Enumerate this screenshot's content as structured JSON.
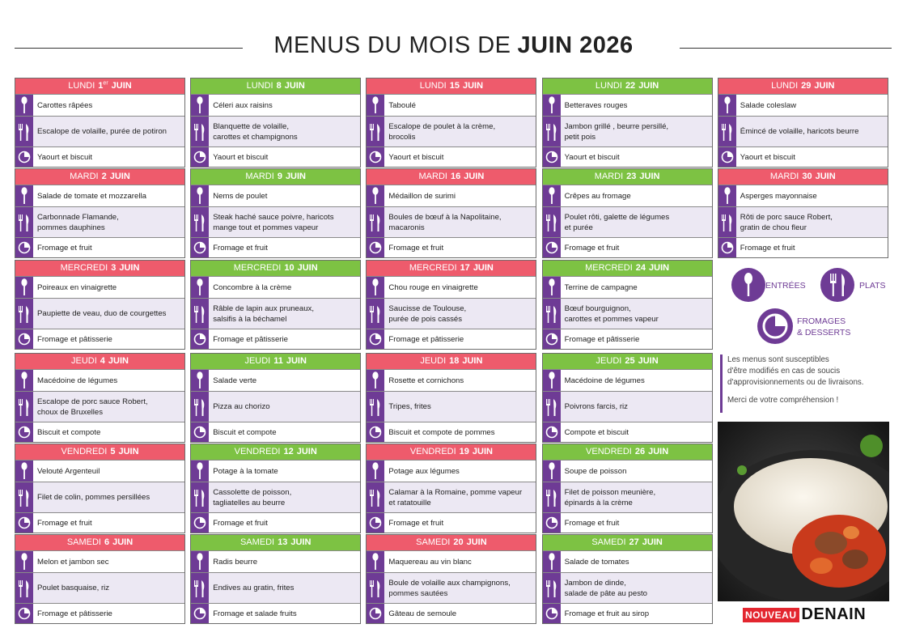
{
  "title": {
    "regular": "MENUS DU MOIS DE",
    "bold": "JUIN 2026"
  },
  "weeks": [
    {
      "header_color": "#ee5b6c",
      "days": [
        {
          "weekday": "LUNDI",
          "day": "1",
          "suffix": "er",
          "month": "JUIN",
          "entree": "Carottes râpées",
          "plat": "Escalope de volaille, purée de potiron",
          "dessert": "Yaourt et biscuit"
        },
        {
          "weekday": "MARDI",
          "day": "2",
          "month": "JUIN",
          "entree": "Salade de tomate et mozzarella",
          "plat": "Carbonnade Flamande,\npommes dauphines",
          "dessert": "Fromage et fruit"
        },
        {
          "weekday": "MERCREDI",
          "day": "3",
          "month": "JUIN",
          "entree": "Poireaux en vinaigrette",
          "plat": "Paupiette de veau, duo de courgettes",
          "dessert": "Fromage et pâtisserie"
        },
        {
          "weekday": "JEUDI",
          "day": "4",
          "month": "JUIN",
          "entree": "Macédoine de légumes",
          "plat": "Escalope de porc sauce Robert,\nchoux de Bruxelles",
          "dessert": "Biscuit et compote"
        },
        {
          "weekday": "VENDREDI",
          "day": "5",
          "month": "JUIN",
          "entree": "Velouté Argenteuil",
          "plat": "Filet de colin, pommes persillées",
          "dessert": "Fromage et fruit"
        },
        {
          "weekday": "SAMEDI",
          "day": "6",
          "month": "JUIN",
          "entree": "Melon et jambon sec",
          "plat": "Poulet basquaise, riz",
          "dessert": "Fromage et pâtisserie"
        }
      ]
    },
    {
      "header_color": "#7dc243",
      "days": [
        {
          "weekday": "LUNDI",
          "day": "8",
          "month": "JUIN",
          "entree": "Céleri aux raisins",
          "plat": "Blanquette de volaille,\ncarottes et champignons",
          "dessert": "Yaourt et biscuit"
        },
        {
          "weekday": "MARDI",
          "day": "9",
          "month": "JUIN",
          "entree": "Nems de poulet",
          "plat": "Steak haché sauce poivre, haricots\nmange tout et pommes vapeur",
          "dessert": "Fromage et fruit"
        },
        {
          "weekday": "MERCREDI",
          "day": "10",
          "month": "JUIN",
          "entree": "Concombre à la crème",
          "plat": "Râble de lapin aux pruneaux,\nsalsifis à la béchamel",
          "dessert": "Fromage et pâtisserie"
        },
        {
          "weekday": "JEUDI",
          "day": "11",
          "month": "JUIN",
          "entree": "Salade verte",
          "plat": "Pizza au chorizo",
          "dessert": "Biscuit et compote"
        },
        {
          "weekday": "VENDREDI",
          "day": "12",
          "month": "JUIN",
          "entree": "Potage à la tomate",
          "plat": "Cassolette de poisson,\ntagliatelles au beurre",
          "dessert": "Fromage et fruit"
        },
        {
          "weekday": "SAMEDI",
          "day": "13",
          "month": "JUIN",
          "entree": "Radis beurre",
          "plat": "Endives au gratin, frites",
          "dessert": "Fromage et salade fruits"
        }
      ]
    },
    {
      "header_color": "#ee5b6c",
      "days": [
        {
          "weekday": "LUNDI",
          "day": "15",
          "month": "JUIN",
          "entree": "Taboulé",
          "plat": "Escalope de poulet à la crème,\nbrocolis",
          "dessert": "Yaourt et biscuit"
        },
        {
          "weekday": "MARDI",
          "day": "16",
          "month": "JUIN",
          "entree": "Médaillon de surimi",
          "plat": "Boules de bœuf à la Napolitaine,\nmacaronis",
          "dessert": "Fromage et fruit"
        },
        {
          "weekday": "MERCREDI",
          "day": "17",
          "month": "JUIN",
          "entree": "Chou rouge en vinaigrette",
          "plat": "Saucisse de Toulouse,\npurée de pois cassés",
          "dessert": "Fromage et pâtisserie"
        },
        {
          "weekday": "JEUDI",
          "day": "18",
          "month": "JUIN",
          "entree": "Rosette et cornichons",
          "plat": "Tripes, frites",
          "dessert": "Biscuit et compote de pommes"
        },
        {
          "weekday": "VENDREDI",
          "day": "19",
          "month": "JUIN",
          "entree": "Potage aux légumes",
          "plat": "Calamar à la Romaine, pomme vapeur\net ratatouille",
          "dessert": "Fromage et fruit"
        },
        {
          "weekday": "SAMEDI",
          "day": "20",
          "month": "JUIN",
          "entree": "Maquereau au vin blanc",
          "plat": "Boule de volaille aux champignons,\npommes sautées",
          "dessert": "Gâteau de semoule"
        }
      ]
    },
    {
      "header_color": "#7dc243",
      "days": [
        {
          "weekday": "LUNDI",
          "day": "22",
          "month": "JUIN",
          "entree": "Betteraves rouges",
          "plat": "Jambon grillé , beurre persillé,\npetit pois",
          "dessert": "Yaourt et biscuit"
        },
        {
          "weekday": "MARDI",
          "day": "23",
          "month": "JUIN",
          "entree": "Crêpes au fromage",
          "plat": "Poulet rôti, galette de légumes\net purée",
          "dessert": "Fromage et fruit"
        },
        {
          "weekday": "MERCREDI",
          "day": "24",
          "month": "JUIN",
          "entree": "Terrine de campagne",
          "plat": "Bœuf bourguignon,\ncarottes et pommes vapeur",
          "dessert": "Fromage et pâtisserie"
        },
        {
          "weekday": "JEUDI",
          "day": "25",
          "month": "JUIN",
          "entree": "Macédoine de légumes",
          "plat": "Poivrons farcis, riz",
          "dessert": "Compote et biscuit"
        },
        {
          "weekday": "VENDREDI",
          "day": "26",
          "month": "JUIN",
          "entree": "Soupe de poisson",
          "plat": "Filet de poisson meunière,\népinards à la crème",
          "dessert": "Fromage et fruit"
        },
        {
          "weekday": "SAMEDI",
          "day": "27",
          "month": "JUIN",
          "entree": "Salade de tomates",
          "plat": "Jambon de dinde,\nsalade de pâte au pesto",
          "dessert": "Fromage et fruit au sirop"
        }
      ]
    },
    {
      "header_color": "#ee5b6c",
      "days": [
        {
          "weekday": "LUNDI",
          "day": "29",
          "month": "JUIN",
          "entree": "Salade coleslaw",
          "plat": "Émincé de volaille, haricots beurre",
          "dessert": "Yaourt et biscuit"
        },
        {
          "weekday": "MARDI",
          "day": "30",
          "month": "JUIN",
          "entree": "Asperges mayonnaise",
          "plat": "Rôti de porc sauce Robert,\ngratin de chou fleur",
          "dessert": "Fromage et fruit"
        }
      ]
    }
  ],
  "legend": {
    "entrees": "ENTRÉES",
    "plats": "PLATS",
    "desserts": "FROMAGES\n& DESSERTS"
  },
  "note": {
    "text": "Les menus sont susceptibles\nd'être modifiés en cas de soucis\nd'approvisionnements ou de livraisons.",
    "thanks": "Merci de votre compréhension !"
  },
  "logo": {
    "badge": "NOUVEAU",
    "name": "DENAIN"
  }
}
